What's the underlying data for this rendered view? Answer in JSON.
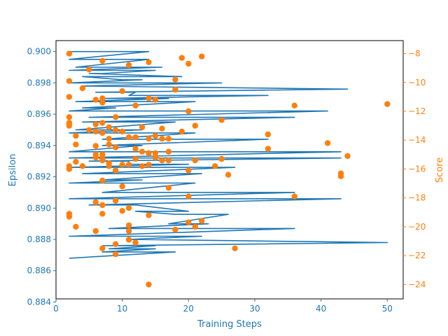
{
  "chart_data": {
    "type": "line+scatter",
    "xlabel": "Training Steps",
    "ylabel_left": "Epsilon",
    "ylabel_right": "Score",
    "xlim": [
      0,
      52.4
    ],
    "ylim_left": [
      0.8842,
      0.9007
    ],
    "ylim_right": [
      -25.0,
      -7.1
    ],
    "x_ticks": [
      0,
      10,
      20,
      30,
      40,
      50
    ],
    "x_tick_labels": [
      "0",
      "10",
      "20",
      "30",
      "40",
      "50"
    ],
    "y_left_ticks": [
      0.884,
      0.886,
      0.888,
      0.89,
      0.892,
      0.894,
      0.896,
      0.898,
      0.9
    ],
    "y_left_tick_labels": [
      "0.884",
      "0.886",
      "0.888",
      "0.890",
      "0.892",
      "0.894",
      "0.896",
      "0.898",
      "0.900"
    ],
    "y_right_ticks": [
      -24,
      -22,
      -20,
      -18,
      -16,
      -14,
      -12,
      -10,
      -8
    ],
    "y_right_tick_labels": [
      "−24",
      "−22",
      "−20",
      "−18",
      "−16",
      "−14",
      "−12",
      "−10",
      "−8"
    ],
    "grid": false,
    "colors": {
      "epsilon": "#1f77b4",
      "score": "#ff7f0e",
      "axes": "#000000"
    },
    "series": [
      {
        "axis": "left",
        "style": "line",
        "x": [
          2,
          14,
          2,
          14,
          3,
          16,
          2,
          15,
          7,
          5,
          19,
          4,
          10,
          13,
          2,
          25,
          4,
          44,
          6,
          12,
          11,
          32,
          7,
          17,
          3,
          21,
          4,
          9,
          2,
          41,
          5,
          36,
          4,
          18,
          3,
          13,
          2,
          21,
          7,
          32,
          7,
          13,
          2,
          43,
          2,
          43,
          5,
          11,
          11,
          20,
          2,
          27,
          4,
          22,
          7,
          13,
          2,
          21,
          7,
          36,
          2,
          43,
          5,
          12,
          20,
          12,
          18,
          26,
          17,
          23,
          8,
          36,
          2,
          22,
          11,
          50,
          7,
          15,
          8,
          15,
          7,
          18,
          2
        ],
        "y": [
          0.9,
          0.9,
          0.8995,
          0.8995,
          0.899,
          0.899,
          0.8988,
          0.8988,
          0.8986,
          0.8986,
          0.8984,
          0.8984,
          0.8982,
          0.8982,
          0.898,
          0.898,
          0.8978,
          0.8976,
          0.8974,
          0.8974,
          0.8972,
          0.8972,
          0.897,
          0.897,
          0.8968,
          0.8968,
          0.8964,
          0.8964,
          0.8962,
          0.8962,
          0.8958,
          0.8958,
          0.8955,
          0.8955,
          0.895,
          0.895,
          0.8948,
          0.8948,
          0.8944,
          0.8944,
          0.894,
          0.894,
          0.8936,
          0.8936,
          0.8932,
          0.8932,
          0.893,
          0.893,
          0.8928,
          0.8928,
          0.8926,
          0.8926,
          0.8922,
          0.8922,
          0.8918,
          0.8918,
          0.8916,
          0.8916,
          0.891,
          0.891,
          0.8906,
          0.8906,
          0.8902,
          0.8902,
          0.8898,
          0.8898,
          0.8896,
          0.8896,
          0.889,
          0.889,
          0.8887,
          0.8887,
          0.8882,
          0.8882,
          0.888,
          0.8878,
          0.8876,
          0.8876,
          0.8874,
          0.8874,
          0.8872,
          0.8872,
          0.8868
        ]
      },
      {
        "axis": "right",
        "style": "scatter",
        "points": [
          [
            2,
            -8
          ],
          [
            22,
            -8.2
          ],
          [
            19,
            -8.3
          ],
          [
            7,
            -8.5
          ],
          [
            14,
            -8.6
          ],
          [
            20,
            -8.7
          ],
          [
            11,
            -8.8
          ],
          [
            5,
            -9.1
          ],
          [
            2,
            -9.9
          ],
          [
            18,
            -9.8
          ],
          [
            4,
            -10.4
          ],
          [
            10,
            -10.6
          ],
          [
            18,
            -10.5
          ],
          [
            2,
            -11
          ],
          [
            7,
            -11.1
          ],
          [
            14,
            -11.1
          ],
          [
            6,
            -11.2
          ],
          [
            15,
            -11.2
          ],
          [
            7,
            -11.4
          ],
          [
            12,
            -11.6
          ],
          [
            36,
            -11.6
          ],
          [
            50,
            -11.5
          ],
          [
            20,
            -12
          ],
          [
            2,
            -12.4
          ],
          [
            9,
            -12.4
          ],
          [
            25,
            -12.6
          ],
          [
            2,
            -12.8
          ],
          [
            6,
            -12.9
          ],
          [
            7,
            -12.8
          ],
          [
            2,
            -13
          ],
          [
            21,
            -13
          ],
          [
            8,
            -13.1
          ],
          [
            13,
            -13.1
          ],
          [
            16,
            -13.2
          ],
          [
            5,
            -13.3
          ],
          [
            9,
            -13.3
          ],
          [
            6,
            -13.4
          ],
          [
            10,
            -13.4
          ],
          [
            19,
            -13.4
          ],
          [
            7,
            -13.5
          ],
          [
            32,
            -13.6
          ],
          [
            3,
            -13.7
          ],
          [
            15,
            -13.7
          ],
          [
            11,
            -13.8
          ],
          [
            12,
            -13.8
          ],
          [
            8,
            -13.9
          ],
          [
            14,
            -13.9
          ],
          [
            16,
            -13.9
          ],
          [
            17,
            -13.9
          ],
          [
            3,
            -14.3
          ],
          [
            9,
            -14.5
          ],
          [
            6,
            -14.4
          ],
          [
            8,
            -14.3
          ],
          [
            41,
            -14.2
          ],
          [
            12,
            -14.6
          ],
          [
            32,
            -14.6
          ],
          [
            13,
            -14.8
          ],
          [
            14,
            -14.9
          ],
          [
            17,
            -14.8
          ],
          [
            6,
            -15
          ],
          [
            7,
            -15
          ],
          [
            15,
            -14.9
          ],
          [
            7,
            -15.3
          ],
          [
            15,
            -15.2
          ],
          [
            44,
            -15.1
          ],
          [
            6,
            -15.2
          ],
          [
            12,
            -15.3
          ],
          [
            16,
            -15.4
          ],
          [
            17,
            -15.4
          ],
          [
            21,
            -15.4
          ],
          [
            25,
            -15.3
          ],
          [
            3,
            -15.5
          ],
          [
            7,
            -15.4
          ],
          [
            8,
            -15.6
          ],
          [
            2,
            -15.8
          ],
          [
            4,
            -15.8
          ],
          [
            8,
            -15.8
          ],
          [
            10,
            -15.7
          ],
          [
            11,
            -15.7
          ],
          [
            13,
            -15.8
          ],
          [
            14,
            -15.7
          ],
          [
            24,
            -15.8
          ],
          [
            2,
            -16
          ],
          [
            9,
            -16.1
          ],
          [
            20,
            -16.1
          ],
          [
            26,
            -16.4
          ],
          [
            43,
            -16.3
          ],
          [
            43,
            -16.5
          ],
          [
            7,
            -16.8
          ],
          [
            10,
            -17.2
          ],
          [
            17,
            -17.3
          ],
          [
            20,
            -17.9
          ],
          [
            36,
            -17.9
          ],
          [
            6,
            -18.3
          ],
          [
            7,
            -18.5
          ],
          [
            9,
            -18.2
          ],
          [
            11,
            -18.7
          ],
          [
            2,
            -19.1
          ],
          [
            7,
            -19.1
          ],
          [
            10,
            -18.9
          ],
          [
            14,
            -19.2
          ],
          [
            2,
            -19.3
          ],
          [
            20,
            -19.7
          ],
          [
            22,
            -19.6
          ],
          [
            11,
            -19.9
          ],
          [
            21,
            -20
          ],
          [
            3,
            -20
          ],
          [
            6,
            -20.3
          ],
          [
            11,
            -20.3
          ],
          [
            18,
            -20.2
          ],
          [
            11,
            -20.9
          ],
          [
            12,
            -21.1
          ],
          [
            9,
            -21.2
          ],
          [
            7,
            -21.5
          ],
          [
            27,
            -21.5
          ],
          [
            9,
            -21.9
          ],
          [
            14,
            -24
          ]
        ]
      }
    ]
  }
}
